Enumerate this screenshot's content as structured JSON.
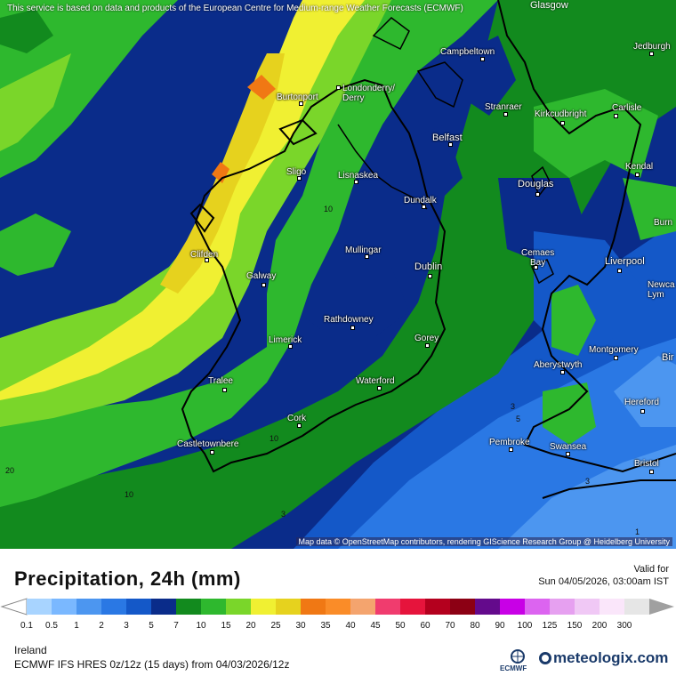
{
  "map": {
    "top_note": "This service is based on data and products of the European Centre for Medium-range Weather Forecasts (ECMWF)",
    "attribution": "Map data © OpenStreetMap contributors, rendering GIScience Research Group @ Heidelberg University",
    "edge_label": "Glasgow",
    "cities": [
      {
        "name": "Campbeltown"
      },
      {
        "name": "Jedburgh"
      },
      {
        "name": "Burtonport"
      },
      {
        "name": "Londonderry/\nDerry"
      },
      {
        "name": "Stranraer"
      },
      {
        "name": "Kirkcudbright"
      },
      {
        "name": "Carlisle"
      },
      {
        "name": "Belfast"
      },
      {
        "name": "Kendal"
      },
      {
        "name": "Sligo"
      },
      {
        "name": "Lisnaskea"
      },
      {
        "name": "Douglas"
      },
      {
        "name": "Dundalk"
      },
      {
        "name": "Burn"
      },
      {
        "name": "Mullingar"
      },
      {
        "name": "Cemaes\nBay"
      },
      {
        "name": "Liverpool"
      },
      {
        "name": "Clifden"
      },
      {
        "name": "Dublin"
      },
      {
        "name": "Galway"
      },
      {
        "name": "Newca\nLym"
      },
      {
        "name": "Rathdowney"
      },
      {
        "name": "Limerick"
      },
      {
        "name": "Gorey"
      },
      {
        "name": "Montgomery"
      },
      {
        "name": "Bir"
      },
      {
        "name": "Aberystwyth"
      },
      {
        "name": "Tralee"
      },
      {
        "name": "Waterford"
      },
      {
        "name": "Hereford"
      },
      {
        "name": "Cork"
      },
      {
        "name": "Castletownbere"
      },
      {
        "name": "Pembroke"
      },
      {
        "name": "Swansea"
      },
      {
        "name": "Bristol"
      }
    ],
    "contour_labels": [
      "10",
      "3",
      "5",
      "3",
      "10",
      "3",
      "20",
      "10",
      "1"
    ]
  },
  "footer": {
    "title": "Precipitation, 24h (mm)",
    "valid_label": "Valid for",
    "valid_date": "Sun 04/05/2026, 03:00am IST",
    "region": "Ireland",
    "model": "ECMWF IFS HRES 0z/12z (15 days) from 04/03/2026/12z",
    "ecmwf_text": "ECMWF",
    "brand": "meteologix.com"
  },
  "legend": {
    "ticks": [
      "0.1",
      "0.5",
      "1",
      "2",
      "3",
      "5",
      "7",
      "10",
      "15",
      "20",
      "25",
      "30",
      "35",
      "40",
      "45",
      "50",
      "60",
      "70",
      "80",
      "90",
      "100",
      "125",
      "150",
      "200",
      "300"
    ],
    "colors": [
      "#a8d4ff",
      "#7ab8ff",
      "#4c96f0",
      "#2a78e4",
      "#1458c8",
      "#0a2c8a",
      "#128a1e",
      "#2eb82e",
      "#7ad62a",
      "#f0f032",
      "#e6d21e",
      "#f07814",
      "#fa8c28",
      "#f4a46e",
      "#f03c6e",
      "#e6143c",
      "#b4001e",
      "#8c0014",
      "#640a8c",
      "#c800e6",
      "#dc64f0",
      "#e6a0f0",
      "#f0c8f5",
      "#fae6fa",
      "#e6e6e6",
      "#a0a0a0"
    ]
  }
}
